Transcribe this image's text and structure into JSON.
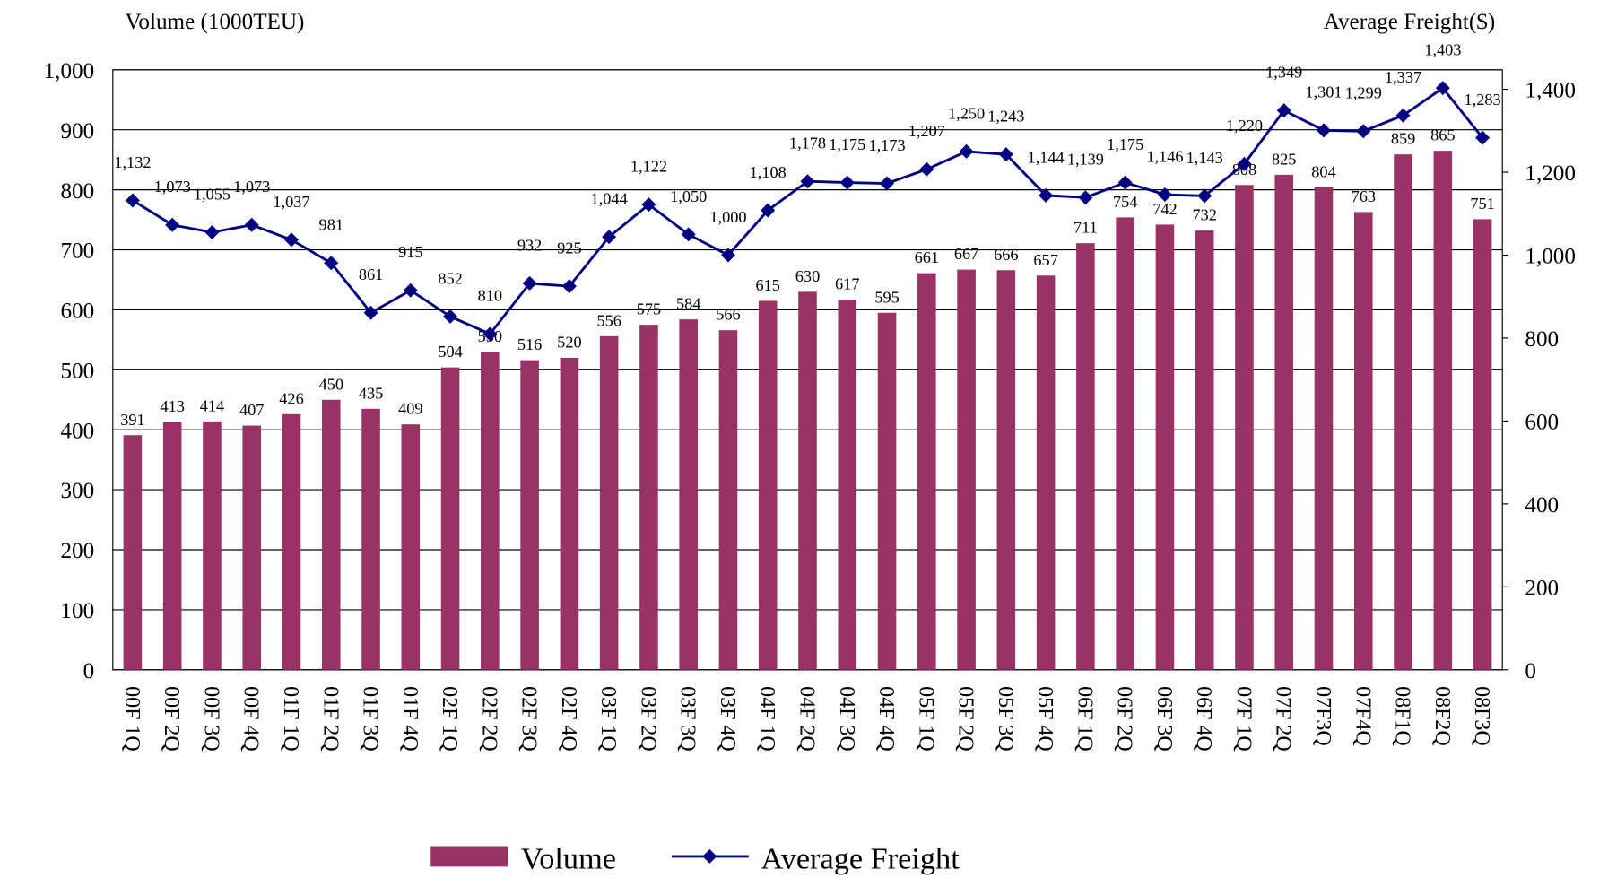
{
  "chart_data": {
    "type": "bar",
    "y_axis_title": "Volume (1000TEU)",
    "y2_axis_title": "Average Freight($)",
    "categories": [
      "00F 1Q",
      "00F 2Q",
      "00F 3Q",
      "00F 4Q",
      "01F 1Q",
      "01F 2Q",
      "01F 3Q",
      "01F 4Q",
      "02F 1Q",
      "02F 2Q",
      "02F 3Q",
      "02F 4Q",
      "03F 1Q",
      "03F 2Q",
      "03F 3Q",
      "03F 4Q",
      "04F 1Q",
      "04F 2Q",
      "04F 3Q",
      "04F 4Q",
      "05F 1Q",
      "05F 2Q",
      "05F 3Q",
      "05F 4Q",
      "06F 1Q",
      "06F 2Q",
      "06F 3Q",
      "06F 4Q",
      "07F 1Q",
      "07F 2Q",
      "07F3Q",
      "07F4Q",
      "08F1Q",
      "08F2Q",
      "08F3Q"
    ],
    "series": [
      {
        "name": "Volume",
        "type": "bar",
        "color": "#993366",
        "values": [
          391,
          413,
          414,
          407,
          426,
          450,
          435,
          409,
          504,
          530,
          516,
          520,
          556,
          575,
          584,
          566,
          615,
          630,
          617,
          595,
          661,
          667,
          666,
          657,
          711,
          754,
          742,
          732,
          808,
          825,
          804,
          763,
          859,
          865,
          751
        ]
      },
      {
        "name": "Average Freight",
        "type": "line",
        "axis": "y2",
        "color": "#000080",
        "values": [
          1132,
          1073,
          1055,
          1073,
          1037,
          981,
          861,
          915,
          852,
          810,
          932,
          925,
          1044,
          1122,
          1050,
          1000,
          1108,
          1178,
          1175,
          1173,
          1207,
          1250,
          1243,
          1144,
          1139,
          1175,
          1146,
          1143,
          1220,
          1349,
          1301,
          1299,
          1337,
          1403,
          1283
        ],
        "value_labels": [
          "1,132",
          "1,073",
          "1,055",
          "1,073",
          "1,037",
          "981",
          "861",
          "915",
          "852",
          "810",
          "932",
          "925",
          "1,044",
          "1,122",
          "1,050",
          "1,000",
          "1,108",
          "1,178",
          "1,175",
          "1,173",
          "1,207",
          "1,250",
          "1,243",
          "1,144",
          "1,139",
          "1,175",
          "1,146",
          "1,143",
          "1,220",
          "1,349",
          "1,301",
          "1,299",
          "1,337",
          "1,403",
          "1,283"
        ]
      }
    ],
    "ylim": [
      0,
      1000
    ],
    "yticks": [
      0,
      100,
      200,
      300,
      400,
      500,
      600,
      700,
      800,
      900,
      {
        "value": 1000,
        "label": "1,000"
      }
    ],
    "y2lim": [
      0,
      1447
    ],
    "y2ticks": [
      0,
      200,
      400,
      600,
      800,
      {
        "value": 1000,
        "label": "1,000"
      },
      {
        "value": 1200,
        "label": "1,200"
      },
      {
        "value": 1400,
        "label": "1,400"
      }
    ],
    "grid": true,
    "legend": "bottom"
  }
}
